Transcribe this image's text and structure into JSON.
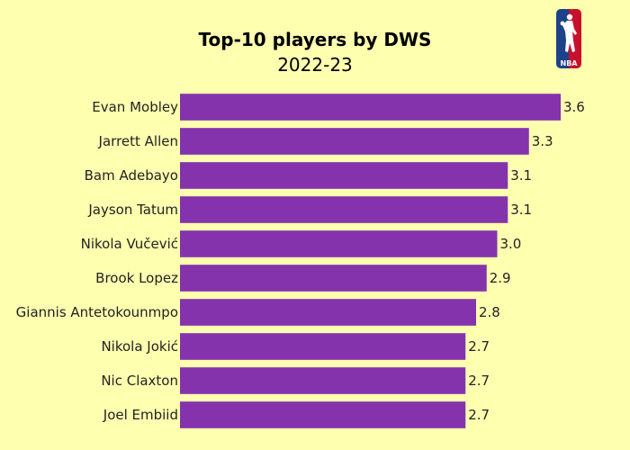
{
  "chart_data": {
    "type": "bar",
    "orientation": "horizontal",
    "title": "Top-10 players by DWS",
    "subtitle": "2022-23",
    "categories": [
      "Evan Mobley",
      "Jarrett Allen",
      "Bam Adebayo",
      "Jayson Tatum",
      "Nikola Vučević",
      "Brook Lopez",
      "Giannis Antetokounmpo",
      "Nikola Jokić",
      "Nic Claxton",
      "Joel Embiid"
    ],
    "values": [
      3.6,
      3.3,
      3.1,
      3.1,
      3.0,
      2.9,
      2.8,
      2.7,
      2.7,
      2.7
    ],
    "value_labels": [
      "3.6",
      "3.3",
      "3.1",
      "3.1",
      "3.0",
      "2.9",
      "2.8",
      "2.7",
      "2.7",
      "2.7"
    ],
    "xlim": [
      0,
      3.6
    ],
    "xlabel": "",
    "ylabel": "",
    "grid": false,
    "legend": "none",
    "bar_color": "#8533ad",
    "background_color": "#ffffb0"
  },
  "logo": {
    "icon": "nba-logo-icon",
    "text": "NBA",
    "colors": {
      "left": "#1d428a",
      "right": "#c8102e",
      "figure": "#ffffff"
    }
  }
}
